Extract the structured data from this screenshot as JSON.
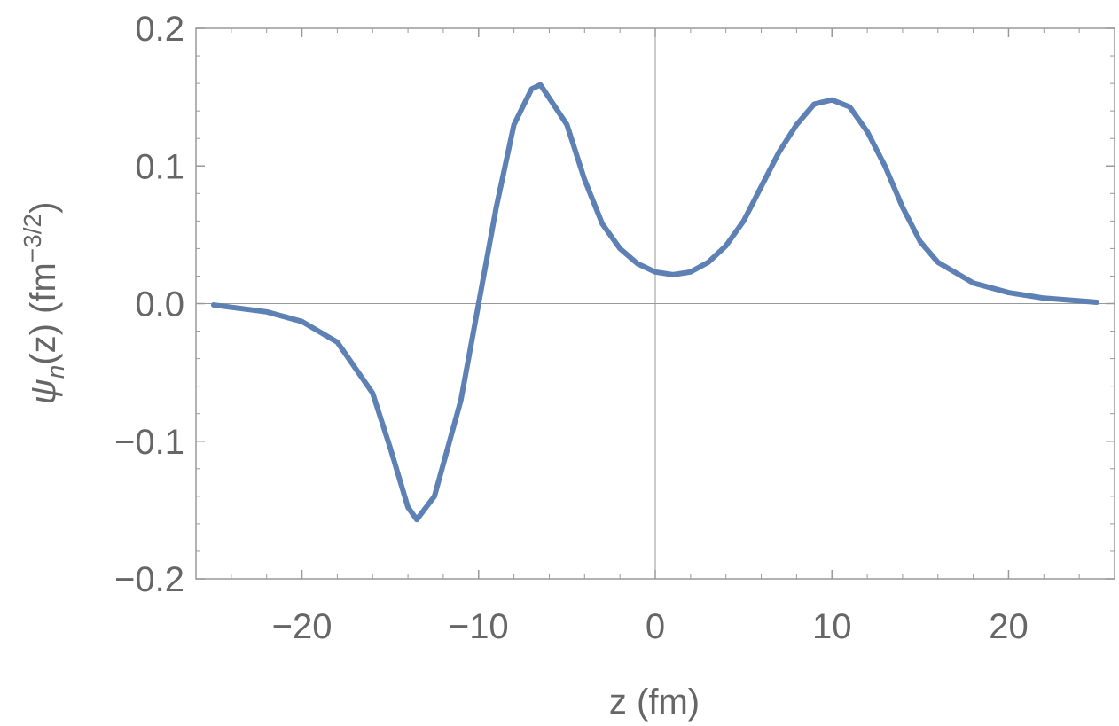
{
  "chart_data": {
    "type": "line",
    "xlabel": "z (fm)",
    "ylabel": {
      "symbol": "ψ",
      "subscript": "n",
      "main": "(z) (fm",
      "superscript": "−3/2",
      "close": ")"
    },
    "xlim": [
      -26,
      26
    ],
    "ylim": [
      -0.2,
      0.2
    ],
    "xticks": [
      {
        "value": -20,
        "label": "−20"
      },
      {
        "value": -10,
        "label": "−10"
      },
      0,
      10,
      20
    ],
    "yticks": [
      {
        "value": -0.2,
        "label": "−0.2"
      },
      {
        "value": -0.1,
        "label": "−0.1"
      },
      {
        "value": 0,
        "label": "0.0"
      },
      0.1,
      0.2
    ],
    "series": [
      {
        "color": "#5e81b5",
        "x": [
          -25,
          -22,
          -20,
          -18,
          -16,
          -15,
          -14,
          -13.5,
          -12.5,
          -11,
          -10,
          -9,
          -8,
          -7,
          -6.5,
          -5,
          -4,
          -3,
          -2,
          -1,
          0,
          1,
          2,
          3,
          4,
          5,
          6,
          7,
          8,
          9,
          10,
          11,
          12,
          13,
          14,
          15,
          16,
          18,
          20,
          22,
          25
        ],
        "values": [
          -0.001,
          -0.006,
          -0.013,
          -0.028,
          -0.065,
          -0.105,
          -0.148,
          -0.157,
          -0.14,
          -0.07,
          0.0,
          0.07,
          0.13,
          0.156,
          0.159,
          0.13,
          0.09,
          0.058,
          0.04,
          0.029,
          0.023,
          0.021,
          0.023,
          0.03,
          0.042,
          0.06,
          0.085,
          0.11,
          0.13,
          0.145,
          0.148,
          0.143,
          0.125,
          0.1,
          0.07,
          0.045,
          0.03,
          0.015,
          0.008,
          0.004,
          0.001
        ]
      }
    ]
  }
}
